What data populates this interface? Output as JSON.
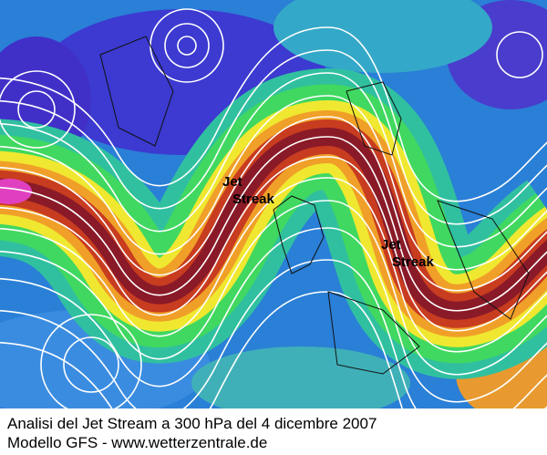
{
  "map": {
    "labels": [
      {
        "lines": [
          "Jet",
          "Streak"
        ]
      },
      {
        "lines": [
          "Jet",
          "Streak"
        ]
      }
    ]
  },
  "caption": [
    "Analisi del Jet Stream a 300 hPa del 4 dicembre 2007",
    "Modello GFS - www.wetterzentrale.de"
  ]
}
